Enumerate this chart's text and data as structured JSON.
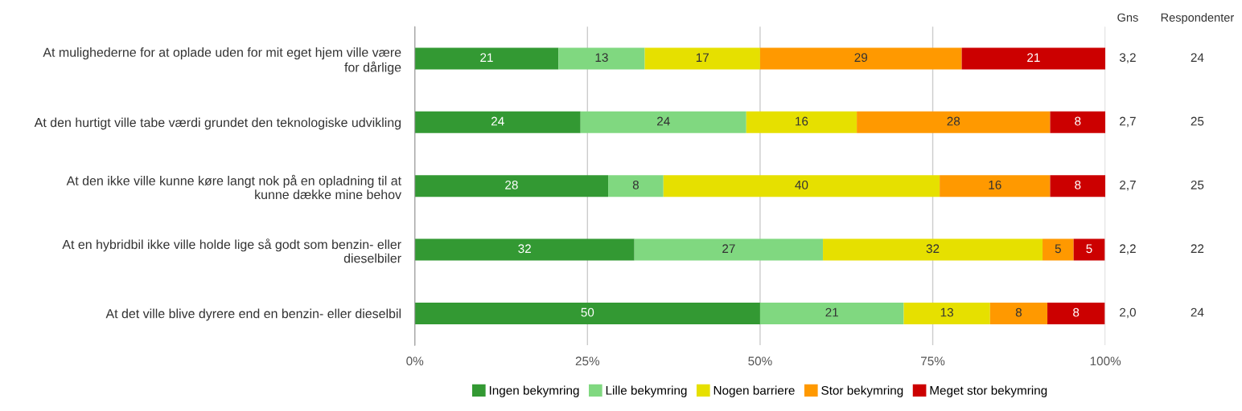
{
  "chart_data": {
    "type": "bar",
    "orientation": "horizontal",
    "stacked": true,
    "categories": [
      "At mulighederne for at oplade uden for mit eget hjem ville være\nfor dårlige",
      "At den hurtigt ville tabe værdi grundet den teknologiske udvikling",
      "At den ikke ville kunne køre langt nok på en opladning til at\nkunne dække mine behov",
      "At en hybridbil ikke ville holde lige så godt som benzin- eller\ndieselbiler",
      "At det ville blive dyrere end en benzin- eller dieselbil"
    ],
    "series": [
      {
        "name": "Ingen bekymring",
        "color": "#339933",
        "values": [
          20.8,
          24,
          28,
          31.8,
          50
        ],
        "value_labels": [
          "21",
          "24",
          "28",
          "32",
          "50"
        ]
      },
      {
        "name": "Lille bekymring",
        "color": "#80d880",
        "values": [
          12.5,
          24,
          8,
          27.3,
          20.8
        ],
        "value_labels": [
          "13",
          "24",
          "8",
          "27",
          "21"
        ]
      },
      {
        "name": "Nogen barriere",
        "color": "#e6e000",
        "values": [
          16.7,
          16,
          40,
          31.8,
          12.5
        ],
        "value_labels": [
          "17",
          "16",
          "40",
          "32",
          "13"
        ]
      },
      {
        "name": "Stor bekymring",
        "color": "#ff9900",
        "values": [
          29.2,
          28,
          16,
          4.5,
          8.3
        ],
        "value_labels": [
          "29",
          "28",
          "16",
          "5",
          "8"
        ]
      },
      {
        "name": "Meget stor bekymring",
        "color": "#cc0000",
        "values": [
          20.8,
          8,
          8,
          4.5,
          8.3
        ],
        "value_labels": [
          "21",
          "8",
          "8",
          "5",
          "8"
        ]
      }
    ],
    "xlim": [
      0,
      100
    ],
    "xticks": [
      {
        "value": 0,
        "label": "0%"
      },
      {
        "value": 25,
        "label": "25%"
      },
      {
        "value": 50,
        "label": "50%"
      },
      {
        "value": 75,
        "label": "75%"
      },
      {
        "value": 100,
        "label": "100%"
      }
    ],
    "grid": "x",
    "legend": "bottom",
    "annotations": [
      "Gns",
      "Respondenter",
      "3,2",
      "24",
      "2,7",
      "25",
      "2,7",
      "25",
      "2,2",
      "22",
      "2,0",
      "24"
    ]
  }
}
